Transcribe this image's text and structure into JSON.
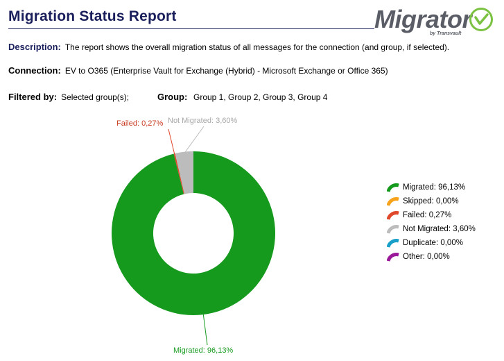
{
  "report": {
    "title": "Migration Status Report",
    "logo_text": "Migrator",
    "logo_sub": "by Transvault",
    "description_label": "Description:",
    "description_value": "The report shows the overall migration status of all messages for the connection (and group, if selected).",
    "connection_label": "Connection:",
    "connection_value": "EV to O365 (Enterprise Vault for Exchange (Hybrid) - Microsoft Exchange or Office 365)",
    "filtered_label": "Filtered by:",
    "filtered_value": "Selected group(s);",
    "group_label": "Group:",
    "group_value": "Group 1, Group 2, Group 3, Group 4"
  },
  "colors": {
    "title": "#1a1f5c",
    "logo_green": "#7cc242"
  },
  "chart_data": {
    "type": "pie",
    "donut": true,
    "slices": [
      {
        "label": "Migrated",
        "value": 96.13,
        "display": "Migrated: 96,13%",
        "color": "#159a1e"
      },
      {
        "label": "Skipped",
        "value": 0.0,
        "display": "Skipped: 0,00%",
        "color": "#f7a21b"
      },
      {
        "label": "Failed",
        "value": 0.27,
        "display": "Failed: 0,27%",
        "color": "#e0482b"
      },
      {
        "label": "Not Migrated",
        "value": 3.6,
        "display": "Not Migrated: 3,60%",
        "color": "#bcbcbc"
      },
      {
        "label": "Duplicate",
        "value": 0.0,
        "display": "Duplicate: 0,00%",
        "color": "#1aa0c8"
      },
      {
        "label": "Other",
        "value": 0.0,
        "display": "Other: 0,00%",
        "color": "#9a1a9a"
      }
    ],
    "data_labels": [
      {
        "text": "Failed: 0,27%",
        "color": "#c8391f"
      },
      {
        "text": "Not Migrated: 3,60%",
        "color": "#a7a7a7"
      },
      {
        "text": "Migrated: 96,13%",
        "color": "#159a1e"
      }
    ],
    "legend_position": "right"
  }
}
